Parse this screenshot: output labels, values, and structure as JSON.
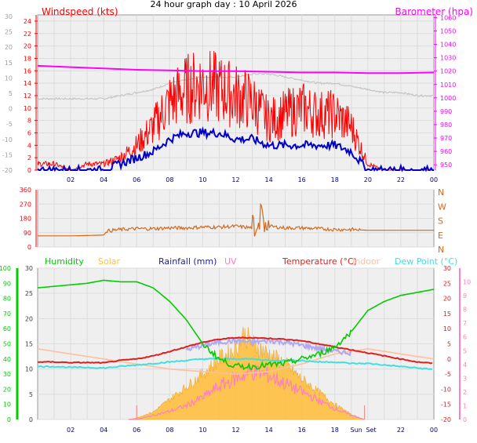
{
  "page_title": "24 hour graph day : 10 April 2026",
  "colors": {
    "background": "#ffffff",
    "plot_bg": "#efefef",
    "grid": "#dcdcdc",
    "wind": "#ff0000",
    "gust_base": "#0000c8",
    "baro": "#ff00ff",
    "baro_trace": "#c0c0c0",
    "direction": "#d2691e",
    "humidity": "#00cc00",
    "solar": "#ffc040",
    "rainfall": "#00008b",
    "uv": "#ff80c0",
    "temperature": "#dd2020",
    "indoor": "#ffc0a0",
    "dew_point": "#40e0e0",
    "hour_label": "#000080",
    "dir_label": "#d2691e"
  },
  "chart_data": [
    {
      "type": "line",
      "panel": "wind_baro",
      "left_axis_title": "Windspeed (kts)",
      "right_axis_title": "Barometer (hpa)",
      "x_ticks": [
        "02",
        "04",
        "06",
        "08",
        "10",
        "12",
        "14",
        "16",
        "18",
        "20",
        "22",
        "00"
      ],
      "x_range": [
        0,
        24
      ],
      "left_outer_ticks": [
        "30",
        "25",
        "20",
        "15",
        "10",
        "5",
        "0",
        "-5",
        "-10",
        "-15",
        "-20"
      ],
      "left_inner_ticks": [
        "0",
        "2",
        "4",
        "6",
        "8",
        "10",
        "12",
        "14",
        "16",
        "18",
        "20",
        "22",
        "24"
      ],
      "left_inner_range": [
        0,
        25
      ],
      "right_ticks": [
        "950",
        "960",
        "970",
        "980",
        "990",
        "1000",
        "1010",
        "1020",
        "1030",
        "1040",
        "1050",
        "1060"
      ],
      "right_range": [
        946,
        1062
      ],
      "grid": true,
      "series": [
        {
          "key": "windspeed",
          "x": [
            0,
            1,
            2,
            3,
            4,
            5,
            6,
            7,
            8,
            9,
            10,
            11,
            12,
            13,
            14,
            15,
            16,
            17,
            18,
            19,
            20,
            21,
            22,
            23,
            24
          ],
          "values": [
            1,
            1,
            0,
            1,
            1,
            2,
            4,
            7,
            11,
            13,
            14,
            13,
            12,
            11,
            8,
            9,
            10,
            9,
            9,
            7,
            1,
            0,
            0,
            0,
            0
          ]
        },
        {
          "key": "gust_base",
          "x": [
            0,
            1,
            2,
            3,
            4,
            5,
            6,
            7,
            8,
            9,
            10,
            11,
            12,
            13,
            14,
            15,
            16,
            17,
            18,
            19,
            20,
            21,
            22,
            23,
            24
          ],
          "values": [
            0,
            0,
            0,
            0,
            0,
            1,
            2,
            3,
            5,
            6,
            6,
            6,
            5,
            5,
            4,
            4,
            4,
            4,
            4,
            3,
            0,
            0,
            0,
            0,
            0
          ]
        },
        {
          "key": "pressure",
          "x": [
            0,
            2,
            4,
            6,
            8,
            10,
            12,
            14,
            16,
            18,
            20,
            22,
            24
          ],
          "values": [
            1024,
            1023,
            1022,
            1021,
            1020.5,
            1020,
            1020,
            1019.5,
            1019,
            1019,
            1018.5,
            1018.5,
            1019
          ]
        },
        {
          "key": "baro_trace",
          "x": [
            0,
            1,
            2,
            3,
            4,
            5,
            6,
            7,
            8,
            9,
            10,
            11,
            12,
            13,
            14,
            15,
            16,
            17,
            18,
            19,
            20,
            21,
            22,
            23,
            24
          ],
          "values": [
            3,
            3,
            3,
            3,
            3,
            4,
            5,
            6,
            8,
            9,
            10,
            10,
            10,
            11,
            11,
            10,
            9,
            8,
            8,
            7,
            6,
            5,
            5,
            4,
            4
          ]
        }
      ]
    },
    {
      "type": "line",
      "panel": "wind_direction",
      "left_ticks": [
        "360",
        "270",
        "180",
        "90",
        "0"
      ],
      "left_range": [
        0,
        360
      ],
      "right_labels": [
        "N",
        "W",
        "S",
        "E",
        "N"
      ],
      "x_range": [
        0,
        24
      ],
      "grid": true,
      "series": [
        {
          "key": "direction",
          "x": [
            0,
            1,
            2,
            3,
            4,
            4.2,
            5,
            6,
            7,
            8,
            9,
            10,
            11,
            12,
            13,
            13.5,
            14,
            15,
            16,
            17,
            18,
            19,
            20,
            21,
            22,
            23,
            24
          ],
          "values": [
            70,
            70,
            70,
            72,
            75,
            100,
            110,
            115,
            115,
            120,
            120,
            125,
            125,
            130,
            120,
            190,
            130,
            120,
            120,
            115,
            110,
            110,
            105,
            105,
            105,
            105,
            105
          ]
        }
      ]
    },
    {
      "type": "line",
      "panel": "temp_hum_solar",
      "legend": [
        "Humidity",
        "Solar",
        "Rainfall (mm)",
        "UV",
        "Temperature (°C)",
        "Indoor",
        "Dew Point (°C)"
      ],
      "x_ticks": [
        "02",
        "04",
        "06",
        "08",
        "10",
        "12",
        "14",
        "16",
        "18",
        "Sun",
        "Set",
        "22",
        "00"
      ],
      "x_range": [
        0,
        24
      ],
      "left_outer_ticks": [
        "100",
        "90",
        "80",
        "70",
        "60",
        "50",
        "40",
        "30",
        "20",
        "10",
        "0"
      ],
      "left_inner_ticks": [
        "0",
        "5",
        "10",
        "15",
        "20",
        "25",
        "30"
      ],
      "left_inner_range": [
        0,
        30
      ],
      "right_inner_ticks": [
        "-20",
        "-15",
        "-10",
        "-5",
        "0",
        "5",
        "10",
        "15",
        "20",
        "25",
        "30"
      ],
      "right_inner_range": [
        -20,
        30
      ],
      "right_outer_ticks": [
        "0",
        "1",
        "2",
        "3",
        "4",
        "5",
        "6",
        "7",
        "8",
        "9",
        "10"
      ],
      "right_outer_range": [
        0,
        11
      ],
      "sunrise_hour": 6,
      "sunset_hour": 19.8,
      "grid": true,
      "series": [
        {
          "key": "humidity",
          "x": [
            0,
            1,
            2,
            3,
            4,
            5,
            6,
            7,
            8,
            9,
            10,
            11,
            12,
            13,
            14,
            15,
            16,
            17,
            18,
            19,
            20,
            21,
            22,
            23,
            24
          ],
          "values": [
            87,
            88,
            89,
            90,
            92,
            91,
            91,
            87,
            78,
            66,
            50,
            40,
            35,
            35,
            36,
            37,
            40,
            43,
            48,
            58,
            72,
            78,
            82,
            84,
            86
          ]
        },
        {
          "key": "temperature",
          "x": [
            0,
            1,
            2,
            3,
            4,
            5,
            6,
            7,
            8,
            9,
            10,
            11,
            12,
            13,
            14,
            15,
            16,
            17,
            18,
            19,
            20,
            21,
            22,
            23,
            24
          ],
          "values": [
            -1,
            -1,
            -1.2,
            -1.2,
            -1.3,
            -0.5,
            0,
            1,
            2.5,
            4,
            5.5,
            6.5,
            7,
            7,
            6.8,
            6.5,
            6,
            5,
            4,
            3,
            2,
            1,
            0,
            -1,
            -1.5
          ]
        },
        {
          "key": "indoor",
          "x": [
            0,
            2,
            4,
            6,
            8,
            10,
            12,
            14,
            16,
            18,
            19,
            20,
            22,
            24
          ],
          "values": [
            14,
            13,
            12,
            11,
            10,
            9.5,
            9,
            9.5,
            11,
            13,
            13.5,
            14,
            13,
            12
          ]
        },
        {
          "key": "dew_point",
          "x": [
            0,
            1,
            2,
            3,
            4,
            5,
            6,
            7,
            8,
            9,
            10,
            11,
            12,
            13,
            14,
            15,
            16,
            17,
            18,
            19,
            20,
            21,
            22,
            23,
            24
          ],
          "values": [
            -2.5,
            -2.5,
            -2.8,
            -2.8,
            -3,
            -2.5,
            -2,
            -1.5,
            -1,
            -0.5,
            0,
            0,
            0,
            0,
            -0.5,
            -0.5,
            -0.5,
            -1,
            -1,
            -1.5,
            -1.5,
            -2,
            -2.5,
            -3,
            -3.5
          ]
        },
        {
          "key": "apparent",
          "x": [
            9,
            10,
            11,
            12,
            13,
            14,
            15,
            16,
            17,
            18,
            19
          ],
          "values": [
            3,
            4.5,
            5.5,
            6,
            5.5,
            6,
            5.5,
            4.5,
            3.5,
            2.5,
            2
          ]
        },
        {
          "key": "solar",
          "x": [
            5.5,
            6,
            7,
            8,
            9,
            10,
            11,
            12,
            12.5,
            13,
            14,
            15,
            16,
            17,
            18,
            19,
            19.8
          ],
          "values": [
            0,
            0.3,
            1.5,
            4,
            6.5,
            9,
            12,
            14,
            17,
            15,
            13,
            11,
            8,
            5.5,
            3,
            1,
            0
          ]
        },
        {
          "key": "uv",
          "x": [
            5.5,
            6,
            7,
            8,
            9,
            10,
            11,
            12,
            13,
            14,
            15,
            16,
            17,
            18,
            19,
            19.8
          ],
          "values": [
            0,
            0,
            0.3,
            0.6,
            1,
            1.6,
            2.4,
            3,
            3.5,
            3.2,
            2.6,
            2,
            1.4,
            0.8,
            0.3,
            0
          ]
        }
      ]
    }
  ]
}
